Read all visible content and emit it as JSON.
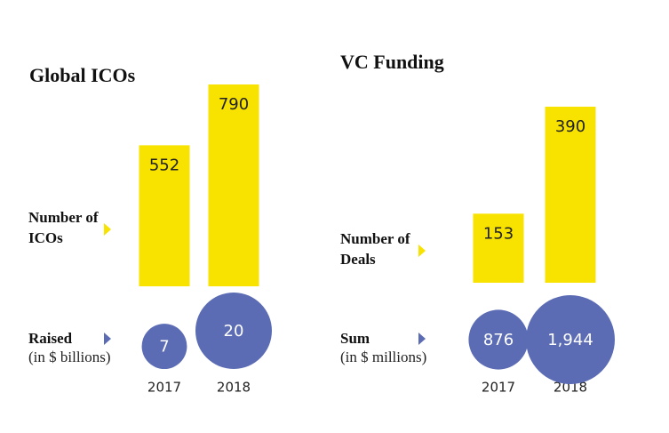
{
  "chart_data": [
    {
      "type": "bar",
      "title": "Global ICOs",
      "categories": [
        "2017",
        "2018"
      ],
      "series": [
        {
          "name": "Number of ICOs",
          "mark": "bar",
          "color": "#f7e200",
          "values": [
            552,
            790
          ]
        },
        {
          "name": "Raised",
          "subtitle": "(in $ billions)",
          "mark": "bubble",
          "color": "#5b6cb4",
          "values": [
            7,
            20
          ]
        }
      ]
    },
    {
      "type": "bar",
      "title": "VC Funding",
      "categories": [
        "2017",
        "2018"
      ],
      "series": [
        {
          "name": "Number of Deals",
          "mark": "bar",
          "color": "#f7e200",
          "values": [
            153,
            390
          ]
        },
        {
          "name": "Sum",
          "subtitle": "(in $ millions)",
          "mark": "bubble",
          "color": "#5b6cb4",
          "values": [
            876,
            1944
          ],
          "value_labels": [
            "876",
            "1,944"
          ]
        }
      ]
    }
  ]
}
